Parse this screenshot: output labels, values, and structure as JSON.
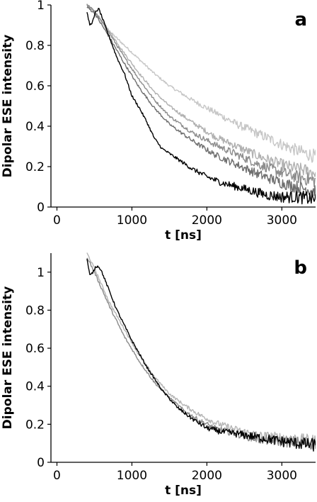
{
  "chart_data": [
    {
      "type": "line",
      "panel_label": "a",
      "xlabel": "t [ns]",
      "ylabel": "Dipolar ESE intensity",
      "xlim": [
        -80,
        3450
      ],
      "ylim": [
        0,
        1
      ],
      "xticks": [
        "0",
        "1000",
        "2000",
        "3000"
      ],
      "yticks": [
        "0",
        "0.2",
        "0.4",
        "0.6",
        "0.8",
        "1"
      ],
      "grid": false,
      "legend": "none",
      "series": [
        {
          "color": "#c6c6c6",
          "x": [
            400,
            500,
            700,
            900,
            1100,
            1300,
            1500,
            1800,
            2100,
            2400,
            2700,
            3000,
            3200,
            3450
          ],
          "y": [
            1.0,
            0.96,
            0.87,
            0.8,
            0.73,
            0.66,
            0.6,
            0.53,
            0.47,
            0.41,
            0.36,
            0.31,
            0.28,
            0.25
          ]
        },
        {
          "color": "#b0b0b0",
          "x": [
            400,
            500,
            700,
            900,
            1100,
            1300,
            1500,
            1800,
            2100,
            2400,
            2700,
            3000,
            3200,
            3450
          ],
          "y": [
            1.0,
            0.97,
            0.87,
            0.76,
            0.66,
            0.57,
            0.5,
            0.42,
            0.35,
            0.3,
            0.25,
            0.21,
            0.19,
            0.17
          ]
        },
        {
          "color": "#8c8c8c",
          "x": [
            400,
            500,
            700,
            900,
            1100,
            1300,
            1500,
            1800,
            2100,
            2400,
            2700,
            3000,
            3200,
            3450
          ],
          "y": [
            1.0,
            0.97,
            0.86,
            0.74,
            0.63,
            0.53,
            0.45,
            0.37,
            0.31,
            0.26,
            0.21,
            0.17,
            0.15,
            0.13
          ]
        },
        {
          "color": "#6e6e6e",
          "x": [
            400,
            500,
            700,
            900,
            1100,
            1300,
            1500,
            1800,
            2100,
            2400,
            2700,
            3000,
            3200,
            3450
          ],
          "y": [
            0.99,
            0.96,
            0.84,
            0.71,
            0.59,
            0.49,
            0.41,
            0.33,
            0.26,
            0.21,
            0.16,
            0.12,
            0.1,
            0.08
          ]
        },
        {
          "color": "#000000",
          "x": [
            400,
            440,
            480,
            520,
            560,
            600,
            700,
            800,
            900,
            1000,
            1100,
            1200,
            1300,
            1400,
            1600,
            1800,
            2000,
            2200,
            2400,
            2600,
            2800,
            3000,
            3200,
            3450
          ],
          "y": [
            0.96,
            0.9,
            0.92,
            0.97,
            0.98,
            0.94,
            0.84,
            0.74,
            0.66,
            0.55,
            0.49,
            0.42,
            0.34,
            0.29,
            0.24,
            0.19,
            0.15,
            0.12,
            0.1,
            0.08,
            0.06,
            0.05,
            0.05,
            0.04
          ]
        }
      ]
    },
    {
      "type": "line",
      "panel_label": "b",
      "xlabel": "t [ns]",
      "ylabel": "Dipolar ESE intensity",
      "xlim": [
        -80,
        3450
      ],
      "ylim": [
        0,
        1.1
      ],
      "xticks": [
        "0",
        "1000",
        "2000",
        "3000"
      ],
      "yticks": [
        "0",
        "0.2",
        "0.4",
        "0.6",
        "0.8",
        "1"
      ],
      "grid": false,
      "legend": "none",
      "series": [
        {
          "color": "#b5b5b5",
          "x": [
            400,
            500,
            700,
            900,
            1100,
            1300,
            1500,
            1700,
            1900,
            2100,
            2400,
            2700,
            3000,
            3450
          ],
          "y": [
            1.1,
            1.02,
            0.84,
            0.7,
            0.56,
            0.45,
            0.36,
            0.3,
            0.25,
            0.21,
            0.17,
            0.14,
            0.13,
            0.11
          ]
        },
        {
          "color": "#8a8a8a",
          "x": [
            400,
            500,
            700,
            900,
            1100,
            1300,
            1500,
            1700,
            1900,
            2100,
            2400,
            2700,
            3000,
            3450
          ],
          "y": [
            1.08,
            1.0,
            0.82,
            0.66,
            0.53,
            0.42,
            0.34,
            0.27,
            0.22,
            0.18,
            0.15,
            0.12,
            0.11,
            0.1
          ]
        },
        {
          "color": "#000000",
          "x": [
            400,
            440,
            480,
            520,
            560,
            600,
            700,
            800,
            900,
            1000,
            1100,
            1200,
            1400,
            1600,
            1800,
            2000,
            2200,
            2400,
            2700,
            3000,
            3200,
            3450
          ],
          "y": [
            1.07,
            0.98,
            1.0,
            1.03,
            1.03,
            1.0,
            0.9,
            0.8,
            0.72,
            0.64,
            0.57,
            0.5,
            0.38,
            0.29,
            0.23,
            0.18,
            0.16,
            0.15,
            0.13,
            0.11,
            0.1,
            0.09
          ]
        }
      ]
    }
  ]
}
